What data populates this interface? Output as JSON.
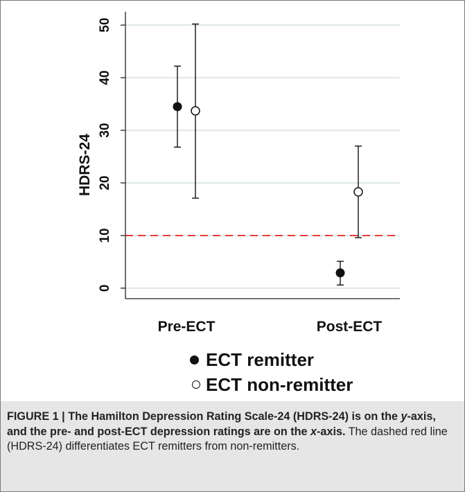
{
  "chart_data": {
    "type": "scatter",
    "ylabel": "HDRS-24",
    "ylim": [
      -2,
      52
    ],
    "yticks": [
      0,
      10,
      20,
      30,
      40,
      50
    ],
    "grid": true,
    "categories": [
      "Pre-ECT",
      "Post-ECT"
    ],
    "series": [
      {
        "name": "ECT remitter",
        "marker": "filled-circle",
        "points": [
          {
            "category": "Pre-ECT",
            "y": 34.5,
            "err_low": 26.8,
            "err_high": 42.2
          },
          {
            "category": "Post-ECT",
            "y": 2.9,
            "err_low": 0.6,
            "err_high": 5.1
          }
        ]
      },
      {
        "name": "ECT non-remitter",
        "marker": "hollow-circle",
        "points": [
          {
            "category": "Pre-ECT",
            "y": 33.7,
            "err_low": 17.1,
            "err_high": 50.2
          },
          {
            "category": "Post-ECT",
            "y": 18.3,
            "err_low": 9.6,
            "err_high": 27.0
          }
        ]
      }
    ],
    "reference_line": {
      "y": 10,
      "style": "dashed",
      "color": "#e8251f"
    },
    "colors": {
      "marker": "#111111",
      "grid": "#dfe8e6",
      "axis": "#222222"
    },
    "legend_position": "bottom"
  },
  "caption": {
    "figure_label": "FIGURE 1 | ",
    "title_part1": "The Hamilton Depression Rating Scale-24 (HDRS-24) is on the ",
    "title_y": "y",
    "title_part2": "-axis, and the pre- and post-ECT depression ratings are on the ",
    "title_x": "x",
    "title_part3": "-axis.",
    "body": " The dashed red line (HDRS-24) differentiates ECT remitters from non-remitters."
  },
  "colors": {
    "caption_background": "#e6e6e7"
  }
}
